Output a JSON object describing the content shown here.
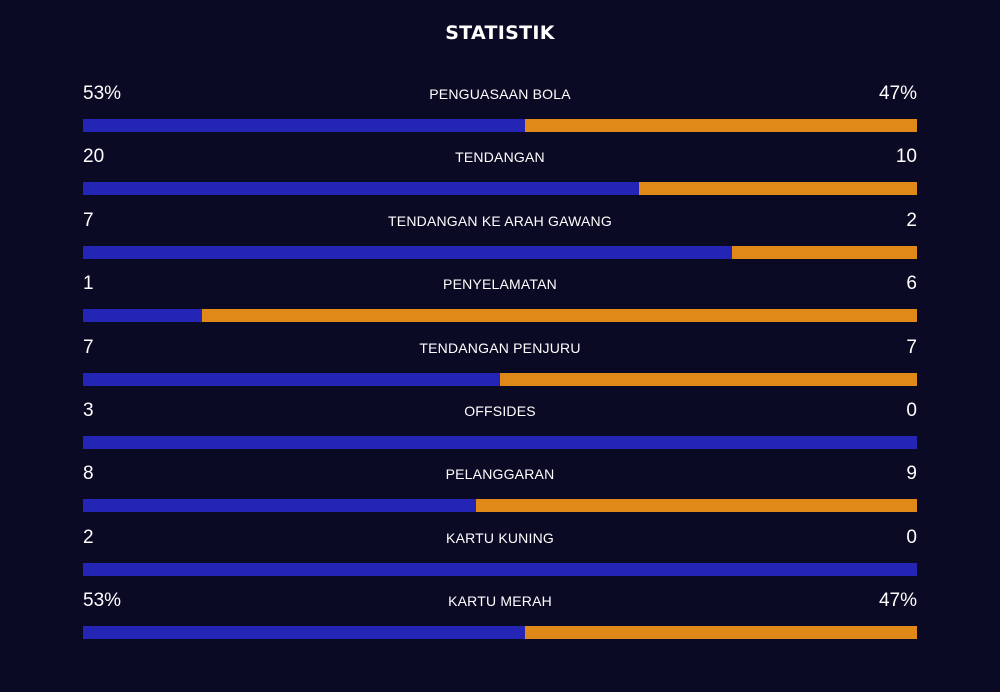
{
  "title": "STATISTIK",
  "colors": {
    "background": "#0a0a24",
    "home": "#2525b5",
    "away": "#e08919",
    "text": "#ffffff"
  },
  "stats": [
    {
      "label": "PENGUASAAN BOLA",
      "home": "53%",
      "away": "47%",
      "home_share": 0.53
    },
    {
      "label": "TENDANGAN",
      "home": "20",
      "away": "10",
      "home_share": 0.667
    },
    {
      "label": "TENDANGAN KE ARAH GAWANG",
      "home": "7",
      "away": "2",
      "home_share": 0.778
    },
    {
      "label": "PENYELAMATAN",
      "home": "1",
      "away": "6",
      "home_share": 0.143
    },
    {
      "label": "TENDANGAN PENJURU",
      "home": "7",
      "away": "7",
      "home_share": 0.5
    },
    {
      "label": "OFFSIDES",
      "home": "3",
      "away": "0",
      "home_share": 1.0
    },
    {
      "label": "PELANGGARAN",
      "home": "8",
      "away": "9",
      "home_share": 0.471
    },
    {
      "label": "KARTU KUNING",
      "home": "2",
      "away": "0",
      "home_share": 1.0
    },
    {
      "label": "KARTU MERAH",
      "home": "53%",
      "away": "47%",
      "home_share": 0.53
    }
  ]
}
